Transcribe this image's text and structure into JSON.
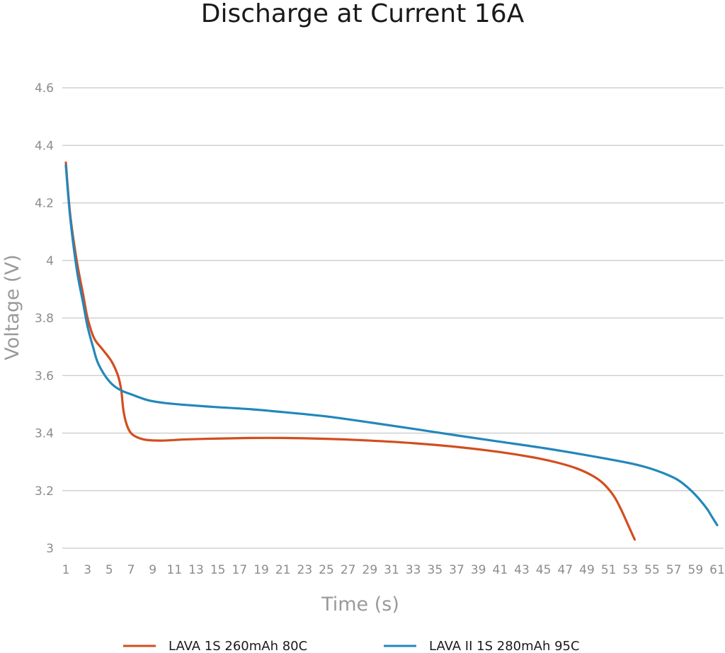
{
  "chart_data": {
    "type": "line",
    "title": "Discharge at Current 16A",
    "xlabel": "Time (s)",
    "ylabel": "Voltage (V)",
    "ylim": [
      3,
      4.6
    ],
    "yticks": [
      3,
      3.2,
      3.4,
      3.6,
      3.8,
      4,
      4.2,
      4.4,
      4.6
    ],
    "ytick_labels": [
      "3",
      "3.2",
      "3.4",
      "3.6",
      "3.8",
      "4",
      "4.2",
      "4.4",
      "4.6"
    ],
    "xlim": [
      1,
      61
    ],
    "xticks": [
      1,
      3,
      5,
      7,
      9,
      11,
      13,
      15,
      17,
      19,
      21,
      23,
      25,
      27,
      29,
      31,
      33,
      35,
      37,
      39,
      41,
      43,
      45,
      47,
      49,
      51,
      53,
      55,
      57,
      59,
      61
    ],
    "grid": true,
    "legend": "bottom",
    "series": [
      {
        "name": "LAVA 1S 260mAh 80C",
        "color": "#d24e1e",
        "x": [
          1.0,
          1.4,
          2.0,
          2.6,
          3.0,
          3.6,
          4.4,
          5.2,
          5.8,
          6.1,
          6.3,
          6.6,
          7.0,
          7.6,
          8.5,
          10.0,
          12.0,
          15.0,
          18.0,
          21.0,
          25.0,
          29.0,
          33.0,
          37.0,
          41.0,
          44.0,
          46.0,
          48.0,
          49.5,
          50.5,
          51.5,
          52.2,
          52.8,
          53.4
        ],
        "y": [
          4.34,
          4.16,
          4.0,
          3.88,
          3.8,
          3.73,
          3.69,
          3.65,
          3.6,
          3.55,
          3.48,
          3.43,
          3.4,
          3.385,
          3.376,
          3.374,
          3.378,
          3.381,
          3.383,
          3.383,
          3.38,
          3.374,
          3.365,
          3.352,
          3.334,
          3.316,
          3.3,
          3.278,
          3.252,
          3.225,
          3.18,
          3.13,
          3.08,
          3.03
        ]
      },
      {
        "name": "LAVA II 1S 280mAh 95C",
        "color": "#2387bb",
        "x": [
          1.0,
          1.4,
          2.0,
          2.6,
          3.0,
          3.5,
          4.0,
          5.0,
          6.0,
          7.0,
          8.5,
          10.0,
          12.0,
          15.0,
          18.0,
          21.0,
          25.0,
          29.0,
          33.0,
          37.0,
          41.0,
          45.0,
          49.0,
          53.0,
          55.0,
          57.0,
          58.0,
          59.0,
          60.0,
          60.5,
          61.0
        ],
        "y": [
          4.33,
          4.15,
          3.97,
          3.85,
          3.77,
          3.7,
          3.64,
          3.58,
          3.55,
          3.535,
          3.515,
          3.505,
          3.498,
          3.49,
          3.483,
          3.473,
          3.458,
          3.437,
          3.415,
          3.392,
          3.37,
          3.348,
          3.323,
          3.295,
          3.275,
          3.245,
          3.22,
          3.185,
          3.14,
          3.11,
          3.08
        ]
      }
    ]
  }
}
